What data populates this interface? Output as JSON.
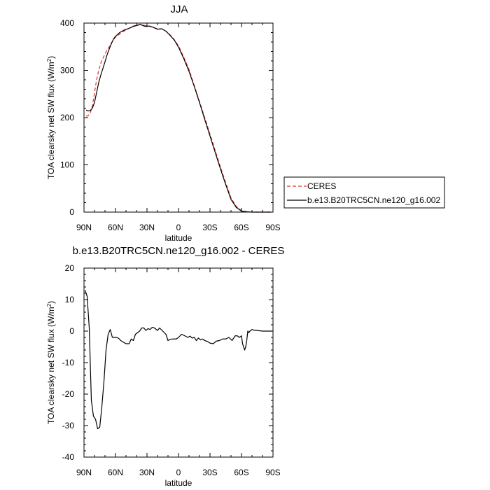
{
  "chart_data": [
    {
      "type": "line",
      "title": "JJA",
      "xlabel": "latitude",
      "ylabel_main": "TOA clearsky net SW flux (W/m",
      "ylabel_sup": "2",
      "ylabel_close": ")",
      "xlim": [
        90,
        -90
      ],
      "ylim": [
        0,
        400
      ],
      "x_ticks": [
        90,
        60,
        30,
        0,
        -30,
        -60,
        -90
      ],
      "x_tick_labels": [
        "90N",
        "60N",
        "30N",
        "0",
        "30S",
        "60S",
        "90S"
      ],
      "y_ticks": [
        0,
        100,
        200,
        300,
        400
      ],
      "y_tick_labels": [
        "0",
        "100",
        "200",
        "300",
        "400"
      ],
      "legend": {
        "position": "right"
      },
      "series": [
        {
          "name": "CERES",
          "color": "#e8302a",
          "dash": true,
          "x": [
            88,
            86,
            84,
            82,
            80,
            78,
            76,
            74,
            72,
            70,
            68,
            66,
            64,
            62,
            60,
            56,
            52,
            48,
            44,
            40,
            36,
            32,
            28,
            24,
            20,
            16,
            12,
            8,
            4,
            0,
            -5,
            -10,
            -15,
            -20,
            -25,
            -30,
            -35,
            -40,
            -45,
            -50,
            -55,
            -60,
            -64,
            -66,
            -68,
            -70,
            -72,
            -76,
            -80,
            -84,
            -88
          ],
          "y": [
            203,
            204,
            210,
            225,
            252,
            280,
            300,
            315,
            325,
            335,
            343,
            350,
            358,
            364,
            370,
            377,
            383,
            388,
            393,
            396,
            397,
            395,
            393,
            391,
            388,
            388,
            383,
            375,
            365,
            352,
            328,
            302,
            268,
            234,
            200,
            165,
            130,
            95,
            62,
            30,
            12,
            3,
            1,
            0.5,
            0.3,
            0,
            0,
            0,
            0,
            0,
            0
          ]
        },
        {
          "name": "b.e13.B20TRC5CN.ne120_g16.002",
          "color": "#000000",
          "dash": false,
          "x": [
            88,
            86,
            84,
            82,
            80,
            78,
            76,
            74,
            72,
            70,
            68,
            66,
            64,
            62,
            60,
            56,
            52,
            48,
            44,
            40,
            36,
            32,
            28,
            24,
            20,
            16,
            12,
            8,
            4,
            0,
            -5,
            -10,
            -15,
            -20,
            -25,
            -30,
            -35,
            -40,
            -45,
            -50,
            -55,
            -60,
            -64,
            -66,
            -68,
            -70,
            -72,
            -76,
            -80,
            -84,
            -88
          ],
          "y": [
            216,
            214,
            215,
            220,
            232,
            253,
            274,
            290,
            304,
            318,
            333,
            345,
            356,
            366,
            372,
            380,
            385,
            388,
            392,
            395,
            397,
            393,
            394,
            391,
            387,
            388,
            383,
            374,
            364,
            349,
            325,
            298,
            266,
            232,
            196,
            161,
            126,
            91,
            58,
            27,
            10,
            2,
            1,
            0.5,
            0.2,
            0,
            0,
            0,
            0,
            0,
            0
          ]
        }
      ]
    },
    {
      "type": "line",
      "title": "b.e13.B20TRC5CN.ne120_g16.002 - CERES",
      "xlabel": "latitude",
      "ylabel_main": "TOA clearsky net SW flux (W/m",
      "ylabel_sup": "2",
      "ylabel_close": ")",
      "xlim": [
        90,
        -90
      ],
      "ylim": [
        -40,
        20
      ],
      "x_ticks": [
        90,
        60,
        30,
        0,
        -30,
        -60,
        -90
      ],
      "x_tick_labels": [
        "90N",
        "60N",
        "30N",
        "0",
        "30S",
        "60S",
        "90S"
      ],
      "y_ticks": [
        -40,
        -30,
        -20,
        -10,
        0,
        10,
        20
      ],
      "y_tick_labels": [
        "-40",
        "-30",
        "-20",
        "-10",
        "0",
        "10",
        "20"
      ],
      "series": [
        {
          "color": "#000000",
          "dash": false,
          "x": [
            89,
            87,
            85,
            83,
            81,
            79,
            77,
            75,
            73,
            71,
            69,
            67,
            65,
            63,
            61,
            59,
            57,
            55,
            50,
            47,
            45,
            43,
            41,
            39,
            37,
            35,
            33,
            31,
            29,
            27,
            25,
            23,
            20,
            18,
            15,
            12,
            10,
            8,
            5,
            2,
            0,
            -3,
            -6,
            -9,
            -11,
            -13,
            -15,
            -17,
            -19,
            -21,
            -23,
            -25,
            -27,
            -30,
            -33,
            -36,
            -39,
            -42,
            -45,
            -48,
            -51,
            -54,
            -56,
            -58,
            -60,
            -61,
            -62,
            -63,
            -64,
            -65,
            -66,
            -67,
            -68,
            -70,
            -72,
            -75,
            -80,
            -85,
            -89
          ],
          "y": [
            13,
            11,
            1,
            -22,
            -27,
            -28,
            -31,
            -30.5,
            -24,
            -16,
            -6,
            -1,
            0.5,
            -2,
            -2,
            -2,
            -2.3,
            -3,
            -4,
            -4,
            -2.5,
            -3,
            -1,
            -0.5,
            0,
            1,
            1,
            0.2,
            0.8,
            0.5,
            1.2,
            1,
            0.2,
            1,
            0,
            -1,
            -3,
            -2.6,
            -2.5,
            -2.5,
            -2,
            -1,
            -1.5,
            -2,
            -1.6,
            -2.2,
            -2,
            -3,
            -2.2,
            -2.8,
            -2.5,
            -3,
            -3.2,
            -3.8,
            -4,
            -3.2,
            -3,
            -2.5,
            -2.5,
            -2,
            -3,
            -1.5,
            -1.5,
            -2,
            -1.5,
            -4,
            -5,
            -6,
            -5,
            -3,
            0,
            -0.5,
            0,
            0.5,
            0.3,
            0.2,
            0,
            0,
            0
          ]
        }
      ]
    }
  ]
}
